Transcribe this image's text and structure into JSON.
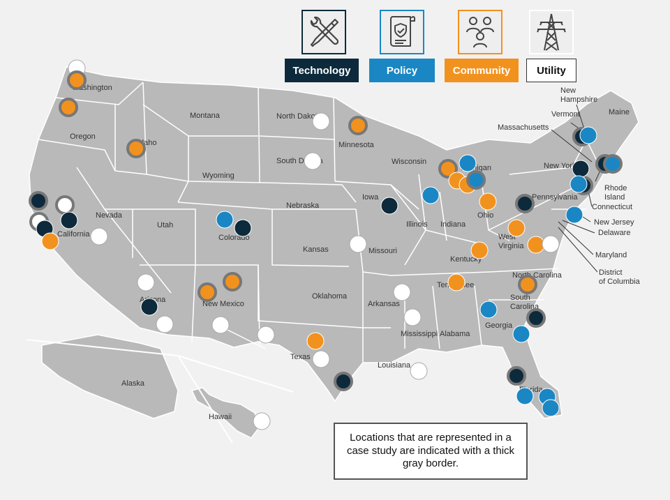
{
  "legend": {
    "technology": {
      "label": "Technology",
      "color": "#0d2a3c",
      "icon": "wrench-screwdriver-icon"
    },
    "policy": {
      "label": "Policy",
      "color": "#1a87c4",
      "icon": "policy-document-shield-icon"
    },
    "community": {
      "label": "Community",
      "color": "#f2921e",
      "icon": "people-group-icon"
    },
    "utility": {
      "label": "Utility",
      "color": "#ffffff",
      "icon": "power-tower-icon"
    }
  },
  "note": "Locations that are represented in a case study are indicated with a thick gray border.",
  "colors": {
    "land": "#b9b9b9",
    "state_border": "#ffffff",
    "case_study_border": "#777777"
  },
  "state_labels": [
    "Washington",
    "Oregon",
    "Idaho",
    "Montana",
    "North Dakota",
    "South Dakota",
    "Minnesota",
    "Wisconsin",
    "Wyoming",
    "Nebraska",
    "Iowa",
    "Illinois",
    "Indiana",
    "Ohio",
    "Michigan",
    "Nevada",
    "Utah",
    "Colorado",
    "California",
    "Kansas",
    "Missouri",
    "Kentucky",
    "West Virginia",
    "Arizona",
    "New Mexico",
    "Oklahoma",
    "Arkansas",
    "Tennessee",
    "North Carolina",
    "South Carolina",
    "Georgia",
    "Alabama",
    "Mississippi",
    "Louisiana",
    "Texas",
    "Florida",
    "Alaska",
    "Hawaii",
    "Maine",
    "New Hampshire",
    "Vermont",
    "Massachusetts",
    "New York",
    "Pennsylvania",
    "Rhode Island",
    "Connecticut",
    "New Jersey",
    "Delaware",
    "Maryland",
    "District of Columbia"
  ]
}
